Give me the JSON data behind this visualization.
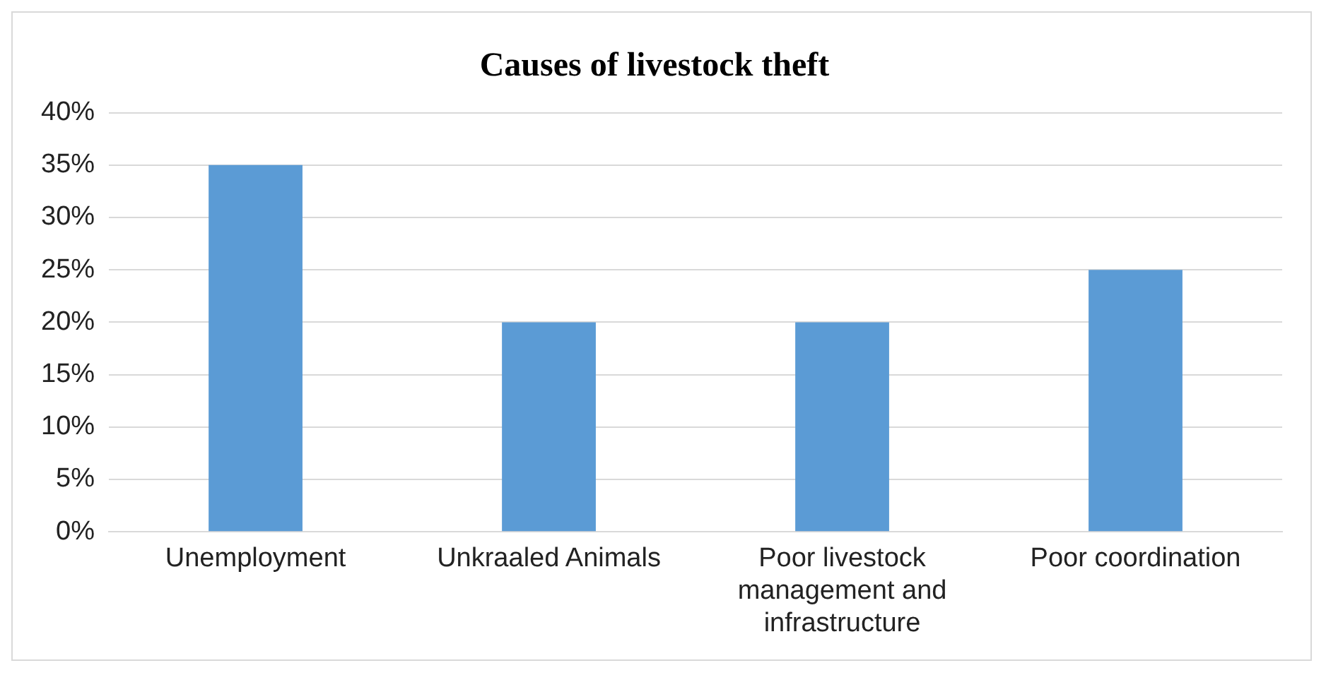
{
  "chart_data": {
    "type": "bar",
    "title": "Causes of livestock theft",
    "categories": [
      "Unemployment",
      "Unkraaled Animals",
      "Poor livestock management and infrastructure",
      "Poor coordination"
    ],
    "values": [
      35,
      20,
      20,
      25
    ],
    "color": "#5b9bd5",
    "ylim": [
      0,
      40
    ],
    "yticks": [
      {
        "value": 0,
        "label": "0%"
      },
      {
        "value": 5,
        "label": "5%"
      },
      {
        "value": 10,
        "label": "10%"
      },
      {
        "value": 15,
        "label": "15%"
      },
      {
        "value": 20,
        "label": "20%"
      },
      {
        "value": 25,
        "label": "25%"
      },
      {
        "value": 30,
        "label": "30%"
      },
      {
        "value": 35,
        "label": "35%"
      },
      {
        "value": 40,
        "label": "40%"
      }
    ],
    "grid": "y",
    "legend": false
  }
}
